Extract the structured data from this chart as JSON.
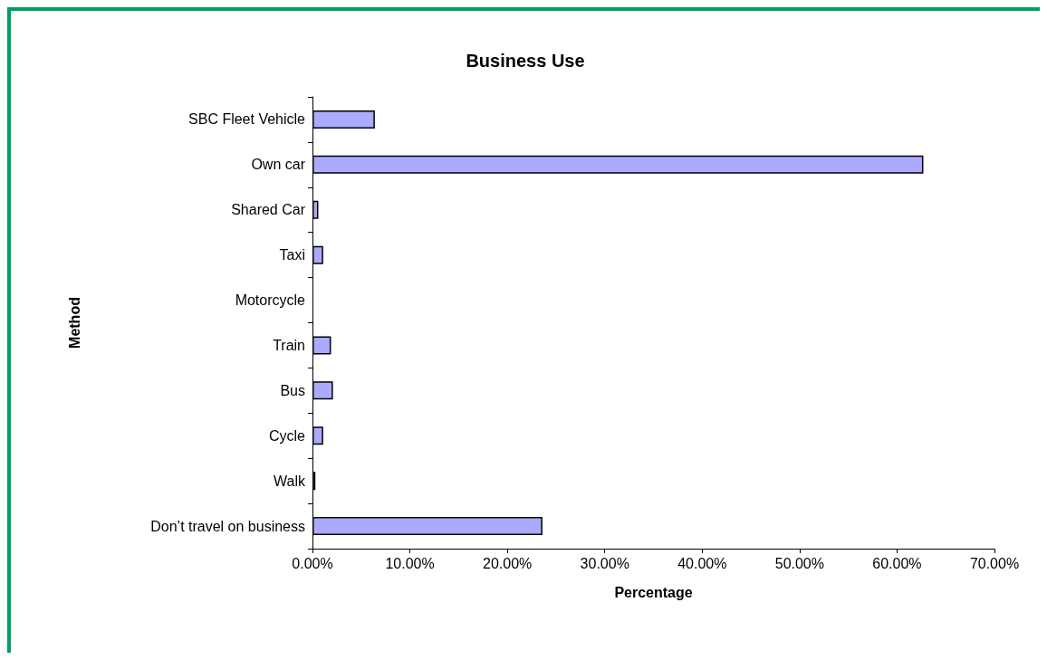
{
  "chart_data": {
    "type": "bar",
    "orientation": "horizontal",
    "title": "Business Use",
    "xlabel": "Percentage",
    "ylabel": "Method",
    "categories": [
      "SBC Fleet Vehicle",
      "Own car",
      "Shared Car",
      "Taxi",
      "Motorcycle",
      "Train",
      "Bus",
      "Cycle",
      "Walk",
      "Don’t travel on business"
    ],
    "values": [
      6.4,
      62.7,
      0.6,
      1.1,
      0,
      1.9,
      2.1,
      1.1,
      0.3,
      23.6
    ],
    "color": "#aaaaff",
    "xlim": [
      0,
      70
    ],
    "xticks": [
      {
        "value": 0,
        "label": "0.00%"
      },
      {
        "value": 10,
        "label": "10.00%"
      },
      {
        "value": 20,
        "label": "20.00%"
      },
      {
        "value": 30,
        "label": "30.00%"
      },
      {
        "value": 40,
        "label": "40.00%"
      },
      {
        "value": 50,
        "label": "50.00%"
      },
      {
        "value": 60,
        "label": "60.00%"
      },
      {
        "value": 70,
        "label": "70.00%"
      }
    ],
    "grid": false
  }
}
